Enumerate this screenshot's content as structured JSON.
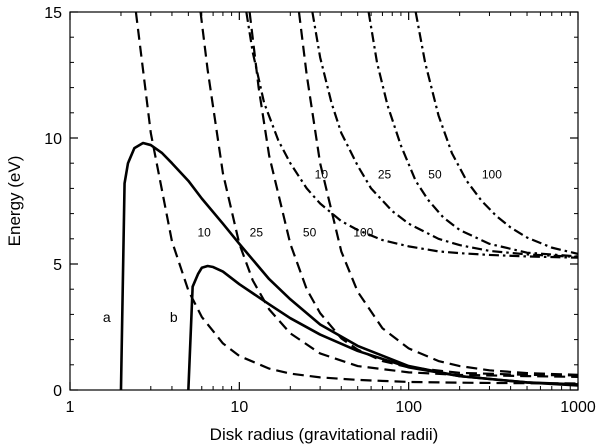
{
  "chart_data": {
    "type": "line",
    "title": "",
    "xlabel": "Disk radius (gravitational radii)",
    "ylabel": "Energy (eV)",
    "x_scale": "log",
    "xlim": [
      1,
      1000
    ],
    "ylim": [
      0,
      15
    ],
    "x_ticks": [
      1,
      10,
      100,
      1000
    ],
    "x_tick_labels": [
      "1",
      "10",
      "100",
      "1000"
    ],
    "y_ticks": [
      0,
      5,
      10,
      15
    ],
    "y_tick_labels": [
      "0",
      "5",
      "10",
      "15"
    ],
    "grid": false,
    "legend": "none",
    "series": [
      {
        "name": "a",
        "style": "solid",
        "x": [
          2.0,
          2.1,
          2.2,
          2.4,
          2.7,
          3.0,
          3.5,
          4.0,
          5.0,
          6.0,
          8.0,
          10,
          15,
          20,
          30,
          50,
          100,
          200,
          500,
          1000
        ],
        "y": [
          0,
          8.2,
          9.0,
          9.6,
          9.8,
          9.72,
          9.4,
          9.0,
          8.3,
          7.6,
          6.6,
          5.8,
          4.4,
          3.6,
          2.6,
          1.75,
          0.95,
          0.55,
          0.3,
          0.22
        ]
      },
      {
        "name": "b",
        "style": "solid",
        "x": [
          5.0,
          5.3,
          5.7,
          6.0,
          6.5,
          7.0,
          8.0,
          10,
          15,
          20,
          30,
          50,
          100,
          200,
          500,
          1000
        ],
        "y": [
          0,
          4.1,
          4.6,
          4.85,
          4.92,
          4.88,
          4.7,
          4.2,
          3.4,
          2.85,
          2.2,
          1.55,
          0.9,
          0.55,
          0.3,
          0.18
        ]
      },
      {
        "name": "10",
        "style": "dashed",
        "x": [
          2.45,
          3,
          4,
          5,
          6,
          8,
          10,
          15,
          20,
          30,
          50,
          100,
          200,
          500,
          1000
        ],
        "y": [
          15,
          10.2,
          5.9,
          3.95,
          2.9,
          1.85,
          1.35,
          0.85,
          0.65,
          0.5,
          0.4,
          0.32,
          0.29,
          0.27,
          0.26
        ]
      },
      {
        "name": "25",
        "style": "dashed",
        "x": [
          5.9,
          6.5,
          8,
          10,
          12,
          15,
          20,
          30,
          50,
          100,
          200,
          500,
          1000
        ],
        "y": [
          15,
          12.7,
          8.6,
          5.8,
          4.35,
          3.2,
          2.25,
          1.45,
          0.95,
          0.7,
          0.6,
          0.55,
          0.52
        ]
      },
      {
        "name": "50",
        "style": "dashed",
        "x": [
          11.5,
          13,
          15,
          20,
          25,
          30,
          40,
          50,
          70,
          100,
          200,
          500,
          1000
        ],
        "y": [
          15,
          12,
          9.3,
          5.8,
          4.0,
          3.05,
          2.05,
          1.6,
          1.15,
          0.9,
          0.68,
          0.6,
          0.58
        ]
      },
      {
        "name": "100",
        "style": "dashed",
        "x": [
          22.5,
          25,
          30,
          40,
          50,
          70,
          100,
          150,
          200,
          300,
          500,
          1000
        ],
        "y": [
          15,
          12.5,
          9.0,
          5.5,
          3.9,
          2.45,
          1.65,
          1.15,
          0.95,
          0.78,
          0.67,
          0.6
        ]
      },
      {
        "name": "10",
        "style": "dash-dot",
        "x": [
          11,
          12,
          14,
          17,
          20,
          25,
          30,
          40,
          50,
          70,
          100,
          150,
          200,
          300,
          500,
          1000
        ],
        "y": [
          15,
          13.4,
          11.4,
          9.9,
          9.0,
          8.0,
          7.4,
          6.7,
          6.35,
          5.95,
          5.7,
          5.5,
          5.43,
          5.36,
          5.3,
          5.25
        ]
      },
      {
        "name": "25",
        "style": "dash-dot",
        "x": [
          27,
          30,
          35,
          40,
          50,
          60,
          80,
          100,
          150,
          200,
          300,
          500,
          1000
        ],
        "y": [
          15,
          13.2,
          11.4,
          10.2,
          8.9,
          8.0,
          7.1,
          6.6,
          6.0,
          5.75,
          5.52,
          5.38,
          5.28
        ]
      },
      {
        "name": "50",
        "style": "dash-dot",
        "x": [
          58,
          65,
          75,
          90,
          110,
          130,
          160,
          200,
          300,
          500,
          1000
        ],
        "y": [
          15,
          13.0,
          11.3,
          9.7,
          8.3,
          7.55,
          6.85,
          6.35,
          5.8,
          5.45,
          5.3
        ]
      },
      {
        "name": "100",
        "style": "dash-dot",
        "x": [
          110,
          125,
          150,
          180,
          220,
          270,
          330,
          400,
          500,
          700,
          1000
        ],
        "y": [
          15,
          13.0,
          10.9,
          9.4,
          8.3,
          7.5,
          6.9,
          6.45,
          6.05,
          5.65,
          5.4
        ]
      }
    ],
    "annotations": [
      {
        "text": "a",
        "x": 1.65,
        "y": 2.7,
        "kind": "curve-label"
      },
      {
        "text": "b",
        "x": 4.1,
        "y": 2.7,
        "kind": "curve-label"
      },
      {
        "text": "10",
        "x": 6.2,
        "y": 6.1,
        "kind": "contour-label"
      },
      {
        "text": "25",
        "x": 12.6,
        "y": 6.1,
        "kind": "contour-label"
      },
      {
        "text": "50",
        "x": 26.0,
        "y": 6.1,
        "kind": "contour-label"
      },
      {
        "text": "100",
        "x": 54,
        "y": 6.1,
        "kind": "contour-label"
      },
      {
        "text": "10",
        "x": 30.5,
        "y": 8.4,
        "kind": "contour-label"
      },
      {
        "text": "25",
        "x": 72,
        "y": 8.4,
        "kind": "contour-label"
      },
      {
        "text": "50",
        "x": 143,
        "y": 8.4,
        "kind": "contour-label"
      },
      {
        "text": "100",
        "x": 310,
        "y": 8.4,
        "kind": "contour-label"
      }
    ]
  }
}
